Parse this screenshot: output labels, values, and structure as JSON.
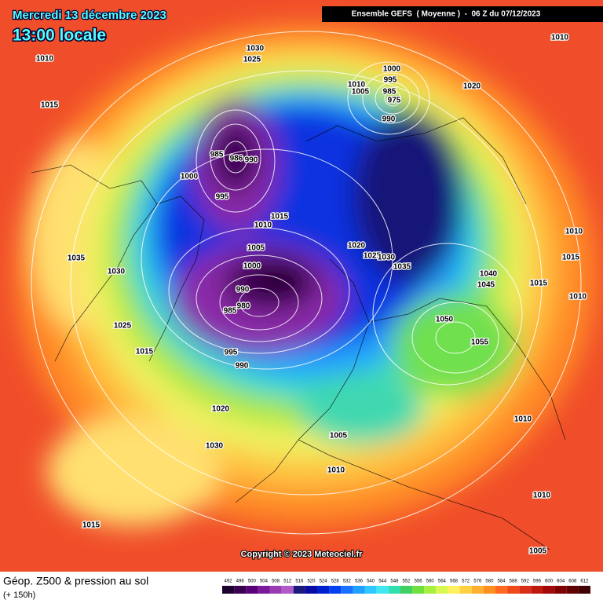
{
  "header": {
    "date": "Mercredi 13 décembre 2023",
    "time": "13:00 locale",
    "run": "Ensemble GEFS  ( Moyenne )  -  06 Z du 07/12/2023"
  },
  "isobar_labels": [
    "1030",
    "1025",
    "1010",
    "1010",
    "1015",
    "1000",
    "995",
    "1010",
    "1005",
    "985",
    "975",
    "990",
    "1020",
    "985",
    "986",
    "990",
    "1000",
    "995",
    "1015",
    "1010",
    "1035",
    "1030",
    "1005",
    "1000",
    "1020",
    "1025",
    "1030",
    "1035",
    "1040",
    "1045",
    "1015",
    "1010",
    "1015",
    "1010",
    "990",
    "980",
    "985",
    "1025",
    "1015",
    "995",
    "990",
    "1050",
    "1055",
    "1020",
    "1010",
    "1030",
    "1005",
    "1010",
    "1010",
    "1015",
    "1005"
  ],
  "copyright": "Copyright © 2023 Meteociel.fr",
  "footer": {
    "title": "Géop. Z500 & pression au sol",
    "lead": "(+ 150h)"
  },
  "legend": {
    "ticks": [
      492,
      496,
      500,
      504,
      508,
      512,
      516,
      520,
      524,
      528,
      532,
      536,
      540,
      544,
      548,
      552,
      556,
      560,
      564,
      568,
      572,
      576,
      580,
      584,
      588,
      592,
      596,
      600,
      604,
      608,
      612
    ],
    "colors": [
      "#1e0030",
      "#3a0050",
      "#5a007a",
      "#7a1a9a",
      "#9a3ab5",
      "#b05ac8",
      "#1a1a7a",
      "#0a0aa5",
      "#0020d0",
      "#0040f0",
      "#1a70ff",
      "#20a0ff",
      "#30c8ff",
      "#40e6f0",
      "#30e0b0",
      "#40d060",
      "#70e040",
      "#a8f040",
      "#d8f850",
      "#fff060",
      "#ffd040",
      "#ffb030",
      "#ff9020",
      "#ff6a20",
      "#f04a1a",
      "#d83018",
      "#c01a10",
      "#a00a0a",
      "#800000",
      "#600000",
      "#400000"
    ]
  }
}
